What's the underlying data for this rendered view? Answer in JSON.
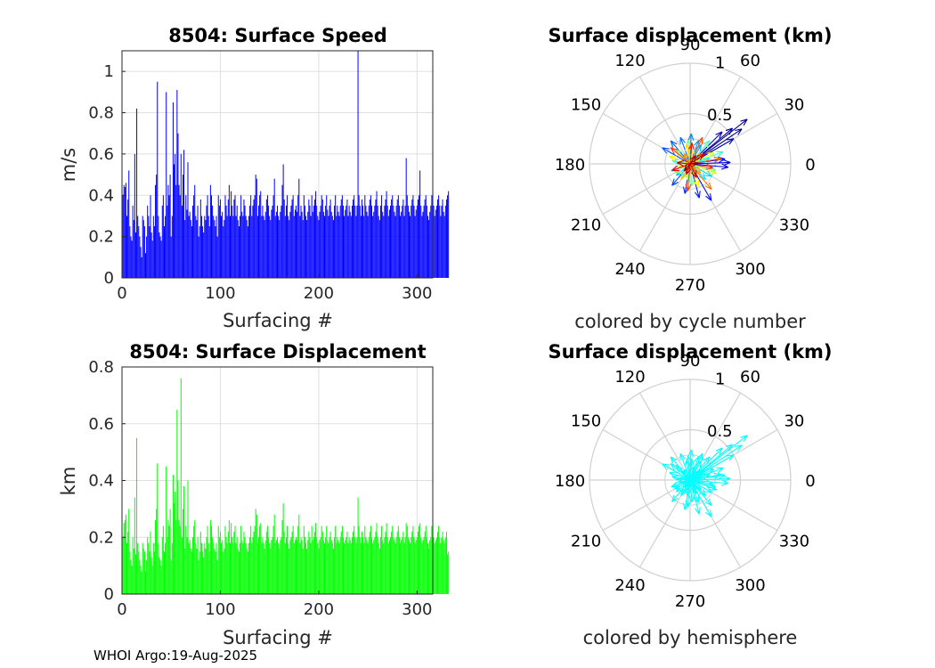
{
  "footer": "WHOI Argo:19-Aug-2025",
  "chart_data": [
    {
      "type": "bar",
      "id": "speed",
      "title": "8504: Surface Speed",
      "xlabel": "Surfacing #",
      "ylabel": "m/s",
      "xlim": [
        0,
        316
      ],
      "ylim": [
        0,
        1.1
      ],
      "xticks": [
        0,
        100,
        200,
        300
      ],
      "yticks": [
        0,
        0.2,
        0.4,
        0.6,
        0.8,
        1
      ],
      "grid": true,
      "color": "#0000ff",
      "values": [
        0.4,
        0.45,
        0.44,
        0.46,
        0.3,
        0.38,
        0.52,
        0.25,
        0.2,
        0.18,
        0.35,
        0.28,
        0.6,
        0.22,
        0.82,
        0.3,
        0.25,
        0.2,
        0.15,
        0.1,
        0.3,
        0.28,
        0.25,
        0.12,
        0.2,
        0.35,
        0.3,
        0.25,
        0.4,
        0.22,
        0.18,
        0.3,
        0.25,
        0.45,
        0.5,
        0.95,
        0.3,
        0.22,
        0.2,
        0.18,
        0.35,
        0.4,
        0.25,
        0.3,
        0.9,
        0.35,
        0.45,
        0.4,
        0.5,
        0.2,
        0.3,
        0.85,
        0.55,
        0.6,
        0.45,
        0.91,
        0.7,
        0.45,
        0.4,
        0.6,
        0.35,
        0.5,
        0.62,
        0.28,
        0.4,
        0.33,
        0.56,
        0.3,
        0.32,
        0.28,
        0.25,
        0.35,
        0.4,
        0.45,
        0.3,
        0.28,
        0.35,
        0.2,
        0.25,
        0.38,
        0.3,
        0.25,
        0.22,
        0.3,
        0.28,
        0.35,
        0.4,
        0.3,
        0.25,
        0.45,
        0.4,
        0.35,
        0.3,
        0.28,
        0.25,
        0.3,
        0.2,
        0.4,
        0.35,
        0.38,
        0.3,
        0.32,
        0.25,
        0.28,
        0.4,
        0.35,
        0.3,
        0.38,
        0.45,
        0.3,
        0.42,
        0.35,
        0.3,
        0.38,
        0.4,
        0.3,
        0.35,
        0.28,
        0.25,
        0.3,
        0.4,
        0.32,
        0.3,
        0.38,
        0.35,
        0.3,
        0.28,
        0.25,
        0.3,
        0.35,
        0.4,
        0.3,
        0.35,
        0.38,
        0.4,
        0.5,
        0.48,
        0.3,
        0.35,
        0.4,
        0.42,
        0.3,
        0.35,
        0.3,
        0.28,
        0.32,
        0.38,
        0.4,
        0.35,
        0.3,
        0.28,
        0.33,
        0.35,
        0.4,
        0.48,
        0.3,
        0.32,
        0.35,
        0.3,
        0.28,
        0.32,
        0.35,
        0.45,
        0.55,
        0.38,
        0.3,
        0.35,
        0.4,
        0.3,
        0.28,
        0.32,
        0.35,
        0.38,
        0.4,
        0.3,
        0.33,
        0.35,
        0.32,
        0.4,
        0.48,
        0.3,
        0.35,
        0.32,
        0.28,
        0.4,
        0.35,
        0.3,
        0.28,
        0.32,
        0.38,
        0.35,
        0.3,
        0.4,
        0.32,
        0.35,
        0.38,
        0.42,
        0.35,
        0.3,
        0.28,
        0.32,
        0.35,
        0.4,
        0.38,
        0.32,
        0.3,
        0.35,
        0.4,
        0.33,
        0.3,
        0.35,
        0.38,
        0.32,
        0.3,
        0.28,
        0.35,
        0.4,
        0.3,
        0.35,
        0.32,
        0.3,
        0.35,
        0.38,
        0.4,
        0.35,
        0.3,
        0.33,
        0.35,
        0.38,
        0.3,
        0.35,
        0.32,
        0.3,
        0.35,
        0.38,
        0.4,
        0.35,
        0.3,
        0.35,
        1.1,
        0.4,
        0.35,
        0.3,
        0.38,
        0.35,
        0.3,
        0.4,
        0.35,
        0.32,
        0.3,
        0.35,
        0.38,
        0.4,
        0.35,
        0.3,
        0.32,
        0.35,
        0.38,
        0.42,
        0.35,
        0.3,
        0.28,
        0.35,
        0.4,
        0.32,
        0.3,
        0.35,
        0.38,
        0.42,
        0.35,
        0.3,
        0.33,
        0.35,
        0.38,
        0.4,
        0.35,
        0.32,
        0.3,
        0.35,
        0.38,
        0.4,
        0.35,
        0.3,
        0.32,
        0.35,
        0.38,
        0.3,
        0.35,
        0.58,
        0.4,
        0.35,
        0.32,
        0.3,
        0.35,
        0.38,
        0.4,
        0.35,
        0.3,
        0.33,
        0.35,
        0.38,
        0.4,
        0.52,
        0.35,
        0.3,
        0.32,
        0.35,
        0.38,
        0.4,
        0.35,
        0.3,
        0.28,
        0.32,
        0.35,
        0.4,
        0.38,
        0.35,
        0.3,
        0.33,
        0.35,
        0.38,
        0.4,
        0.35,
        0.3,
        0.35,
        0.38,
        0.32,
        0.3,
        0.35,
        0.38,
        0.4,
        0.42
      ]
    },
    {
      "type": "bar",
      "id": "displacement",
      "title": "8504: Surface Displacement",
      "xlabel": "Surfacing #",
      "ylabel": "km",
      "xlim": [
        0,
        316
      ],
      "ylim": [
        0,
        0.8
      ],
      "xticks": [
        0,
        100,
        200,
        300
      ],
      "yticks": [
        0,
        0.2,
        0.4,
        0.6,
        0.8
      ],
      "grid": true,
      "color": "#00ff00",
      "values": [
        0.2,
        0.25,
        0.26,
        0.28,
        0.18,
        0.22,
        0.3,
        0.15,
        0.12,
        0.1,
        0.2,
        0.16,
        0.34,
        0.14,
        0.55,
        0.18,
        0.15,
        0.12,
        0.1,
        0.08,
        0.18,
        0.16,
        0.15,
        0.08,
        0.12,
        0.2,
        0.18,
        0.15,
        0.22,
        0.13,
        0.1,
        0.18,
        0.15,
        0.26,
        0.3,
        0.46,
        0.18,
        0.13,
        0.12,
        0.1,
        0.2,
        0.24,
        0.15,
        0.18,
        0.45,
        0.2,
        0.26,
        0.24,
        0.3,
        0.12,
        0.18,
        0.42,
        0.32,
        0.36,
        0.26,
        0.65,
        0.4,
        0.26,
        0.24,
        0.76,
        0.2,
        0.3,
        0.38,
        0.16,
        0.24,
        0.2,
        0.4,
        0.18,
        0.19,
        0.16,
        0.15,
        0.2,
        0.24,
        0.26,
        0.18,
        0.16,
        0.2,
        0.12,
        0.15,
        0.22,
        0.18,
        0.15,
        0.13,
        0.18,
        0.16,
        0.2,
        0.24,
        0.18,
        0.15,
        0.26,
        0.24,
        0.2,
        0.18,
        0.16,
        0.15,
        0.18,
        0.12,
        0.24,
        0.2,
        0.22,
        0.18,
        0.19,
        0.15,
        0.16,
        0.24,
        0.2,
        0.18,
        0.22,
        0.26,
        0.18,
        0.25,
        0.2,
        0.18,
        0.22,
        0.24,
        0.18,
        0.2,
        0.16,
        0.15,
        0.18,
        0.24,
        0.19,
        0.18,
        0.22,
        0.2,
        0.18,
        0.16,
        0.15,
        0.18,
        0.2,
        0.24,
        0.18,
        0.2,
        0.22,
        0.24,
        0.3,
        0.28,
        0.18,
        0.2,
        0.24,
        0.25,
        0.18,
        0.2,
        0.18,
        0.16,
        0.19,
        0.22,
        0.24,
        0.2,
        0.18,
        0.16,
        0.19,
        0.2,
        0.24,
        0.28,
        0.18,
        0.19,
        0.2,
        0.18,
        0.16,
        0.19,
        0.2,
        0.26,
        0.32,
        0.22,
        0.18,
        0.2,
        0.24,
        0.18,
        0.16,
        0.19,
        0.2,
        0.22,
        0.24,
        0.18,
        0.19,
        0.2,
        0.19,
        0.24,
        0.28,
        0.18,
        0.2,
        0.19,
        0.16,
        0.24,
        0.2,
        0.18,
        0.16,
        0.19,
        0.22,
        0.2,
        0.18,
        0.24,
        0.19,
        0.2,
        0.22,
        0.25,
        0.2,
        0.18,
        0.16,
        0.19,
        0.2,
        0.24,
        0.22,
        0.19,
        0.18,
        0.2,
        0.24,
        0.19,
        0.18,
        0.2,
        0.22,
        0.19,
        0.18,
        0.16,
        0.2,
        0.24,
        0.18,
        0.2,
        0.19,
        0.18,
        0.2,
        0.22,
        0.24,
        0.2,
        0.18,
        0.19,
        0.2,
        0.22,
        0.18,
        0.2,
        0.19,
        0.18,
        0.2,
        0.22,
        0.24,
        0.2,
        0.18,
        0.2,
        0.34,
        0.24,
        0.2,
        0.18,
        0.22,
        0.2,
        0.18,
        0.24,
        0.2,
        0.19,
        0.18,
        0.2,
        0.22,
        0.24,
        0.2,
        0.18,
        0.19,
        0.2,
        0.22,
        0.25,
        0.2,
        0.18,
        0.16,
        0.2,
        0.24,
        0.19,
        0.18,
        0.2,
        0.22,
        0.25,
        0.2,
        0.18,
        0.19,
        0.2,
        0.22,
        0.24,
        0.2,
        0.19,
        0.18,
        0.2,
        0.22,
        0.24,
        0.2,
        0.18,
        0.19,
        0.2,
        0.22,
        0.18,
        0.2,
        0.25,
        0.24,
        0.2,
        0.19,
        0.18,
        0.2,
        0.22,
        0.24,
        0.2,
        0.18,
        0.19,
        0.2,
        0.22,
        0.24,
        0.25,
        0.2,
        0.18,
        0.19,
        0.2,
        0.22,
        0.24,
        0.2,
        0.18,
        0.16,
        0.19,
        0.2,
        0.24,
        0.22,
        0.2,
        0.18,
        0.19,
        0.2,
        0.22,
        0.24,
        0.2,
        0.18,
        0.2,
        0.22,
        0.19,
        0.18,
        0.2,
        0.22,
        0.14,
        0.15
      ]
    },
    {
      "type": "polar-vectors",
      "id": "polar-cycle",
      "title": "Surface displacement (km)",
      "caption": "colored by cycle number",
      "rmax": 1,
      "rticks": [
        0.5,
        1
      ],
      "angle_ticks": [
        0,
        30,
        60,
        90,
        120,
        150,
        180,
        210,
        240,
        270,
        300,
        330
      ],
      "coloring": "jet by cycle number",
      "vectors": [
        {
          "r": 0.72,
          "theta": 38
        },
        {
          "r": 0.62,
          "theta": 34
        },
        {
          "r": 0.55,
          "theta": 40
        },
        {
          "r": 0.5,
          "theta": 30
        },
        {
          "r": 0.45,
          "theta": 45
        },
        {
          "r": 0.4,
          "theta": 2
        },
        {
          "r": 0.38,
          "theta": -5
        },
        {
          "r": 0.35,
          "theta": 8
        },
        {
          "r": 0.42,
          "theta": -60
        },
        {
          "r": 0.35,
          "theta": -75
        },
        {
          "r": 0.3,
          "theta": -100
        },
        {
          "r": 0.28,
          "theta": -130
        },
        {
          "r": 0.32,
          "theta": 150
        },
        {
          "r": 0.3,
          "theta": 130
        },
        {
          "r": 0.28,
          "theta": 110
        },
        {
          "r": 0.3,
          "theta": 88
        },
        {
          "r": 0.25,
          "theta": 70
        },
        {
          "r": 0.22,
          "theta": 60
        },
        {
          "r": 0.2,
          "theta": 200
        },
        {
          "r": 0.18,
          "theta": 220
        },
        {
          "r": 0.25,
          "theta": -30
        },
        {
          "r": 0.22,
          "theta": -45
        },
        {
          "r": 0.2,
          "theta": 15
        },
        {
          "r": 0.18,
          "theta": 170
        },
        {
          "r": 0.15,
          "theta": 240
        },
        {
          "r": 0.35,
          "theta": 20
        },
        {
          "r": 0.3,
          "theta": 50
        },
        {
          "r": 0.26,
          "theta": -15
        },
        {
          "r": 0.24,
          "theta": 95
        },
        {
          "r": 0.22,
          "theta": -85
        },
        {
          "r": 0.2,
          "theta": 135
        },
        {
          "r": 0.18,
          "theta": -150
        },
        {
          "r": 0.16,
          "theta": 260
        },
        {
          "r": 0.14,
          "theta": 75
        },
        {
          "r": 0.12,
          "theta": 190
        },
        {
          "r": 0.28,
          "theta": -20
        },
        {
          "r": 0.26,
          "theta": 25
        },
        {
          "r": 0.24,
          "theta": -70
        },
        {
          "r": 0.22,
          "theta": 160
        },
        {
          "r": 0.2,
          "theta": 100
        },
        {
          "r": 0.18,
          "theta": -120
        },
        {
          "r": 0.16,
          "theta": 40
        },
        {
          "r": 0.14,
          "theta": -40
        },
        {
          "r": 0.12,
          "theta": 120
        },
        {
          "r": 0.1,
          "theta": 300
        },
        {
          "r": 0.33,
          "theta": -50
        },
        {
          "r": 0.31,
          "theta": 10
        },
        {
          "r": 0.29,
          "theta": 65
        },
        {
          "r": 0.27,
          "theta": -95
        },
        {
          "r": 0.25,
          "theta": 140
        },
        {
          "r": 0.23,
          "theta": -10
        },
        {
          "r": 0.21,
          "theta": 85
        },
        {
          "r": 0.19,
          "theta": -160
        },
        {
          "r": 0.17,
          "theta": 35
        },
        {
          "r": 0.15,
          "theta": -65
        },
        {
          "r": 0.13,
          "theta": 175
        },
        {
          "r": 0.11,
          "theta": -110
        },
        {
          "r": 0.1,
          "theta": 55
        },
        {
          "r": 0.09,
          "theta": 230
        },
        {
          "r": 0.08,
          "theta": 5
        }
      ]
    },
    {
      "type": "polar-vectors",
      "id": "polar-hemisphere",
      "title": "Surface displacement (km)",
      "caption": "colored by hemisphere",
      "rmax": 1,
      "rticks": [
        0.5,
        1
      ],
      "angle_ticks": [
        0,
        30,
        60,
        90,
        120,
        150,
        180,
        210,
        240,
        270,
        300,
        330
      ],
      "coloring": "single color",
      "color": "#00ffff"
    }
  ]
}
